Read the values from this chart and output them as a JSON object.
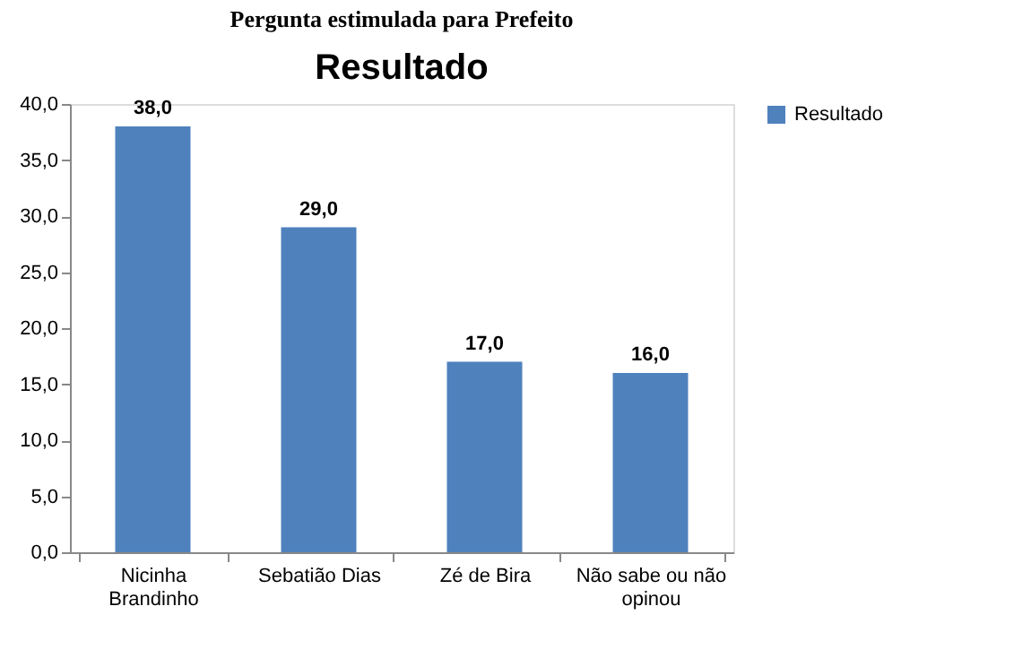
{
  "chart_data": {
    "type": "bar",
    "title": "Pergunta estimulada para Prefeito",
    "subtitle": "Resultado",
    "categories": [
      "Nicinha Brandinho",
      "Sebatião Dias",
      "Zé de Bira",
      "Não sabe ou não opinou"
    ],
    "series": [
      {
        "name": "Resultado",
        "color": "#4f81bd",
        "values": [
          38.0,
          29.0,
          17.0,
          16.0
        ],
        "value_labels": [
          "38,0",
          "29,0",
          "17,0",
          "16,0"
        ]
      }
    ],
    "ylim": [
      0,
      40
    ],
    "yticks": [
      {
        "value": 0,
        "label": "0,0"
      },
      {
        "value": 5,
        "label": "5,0"
      },
      {
        "value": 10,
        "label": "10,0"
      },
      {
        "value": 15,
        "label": "15,0"
      },
      {
        "value": 20,
        "label": "20,0"
      },
      {
        "value": 25,
        "label": "25,0"
      },
      {
        "value": 30,
        "label": "30,0"
      },
      {
        "value": 35,
        "label": "35,0"
      },
      {
        "value": 40,
        "label": "40,0"
      }
    ],
    "grid": false,
    "legend": "right"
  }
}
